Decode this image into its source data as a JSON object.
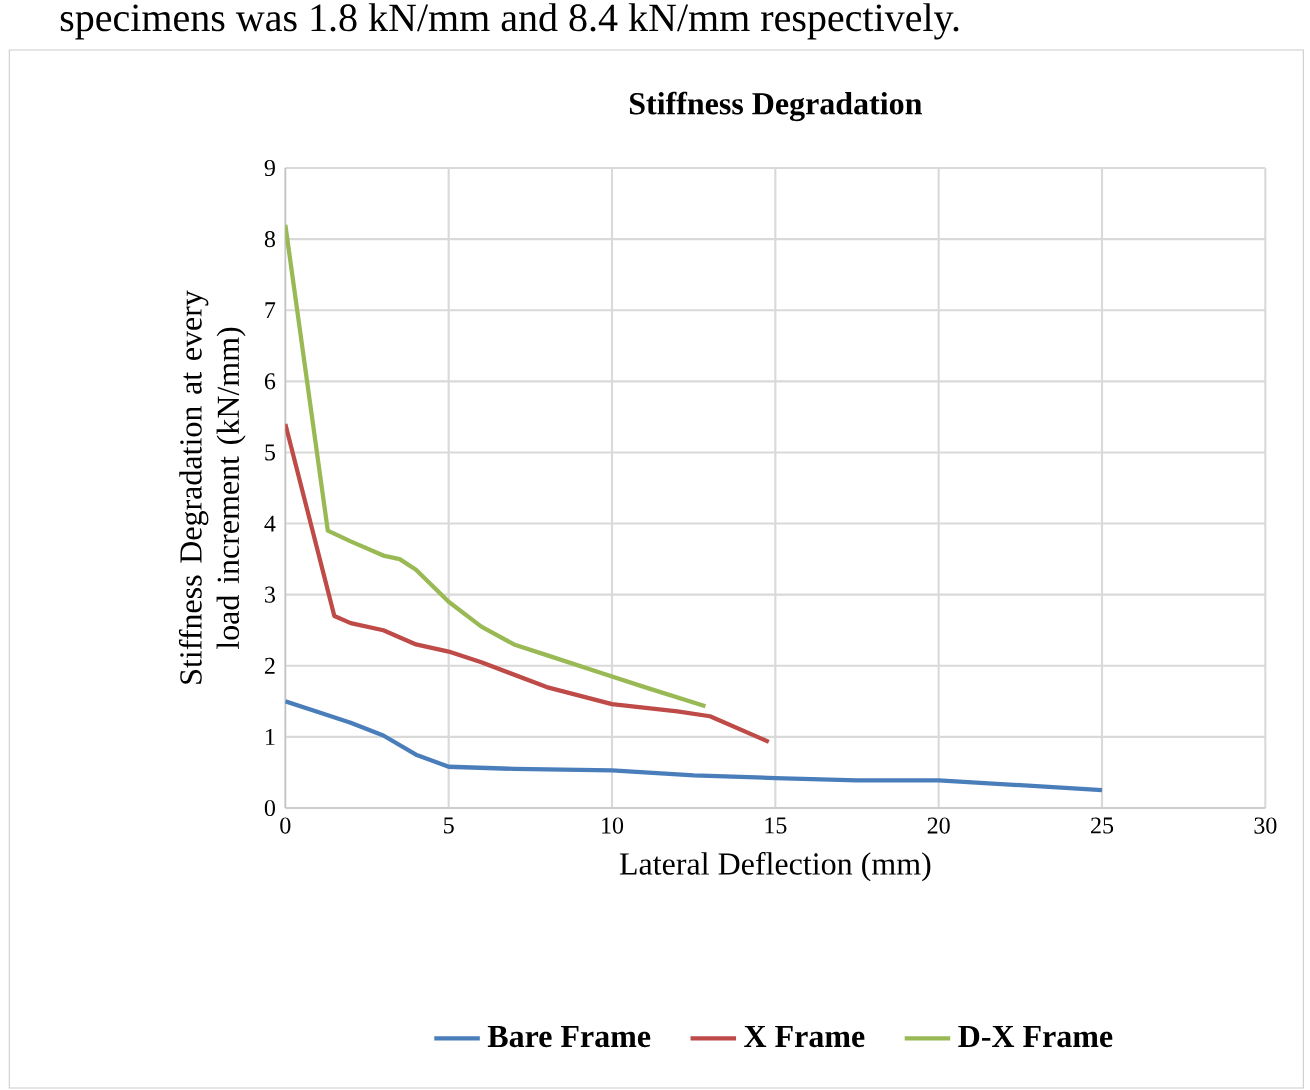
{
  "chart_data": {
    "type": "line",
    "title": "Stiffness Degradation",
    "xlabel": "Lateral Deflection (mm)",
    "ylabel": "Stiffness Degradation at every load increment (kN/mm)",
    "annotations": [
      "specimens was 1.8 kN/mm and 8.4 kN/mm respectively."
    ],
    "xlim": [
      0,
      30
    ],
    "xticks": [
      0,
      5,
      10,
      15,
      20,
      25,
      30
    ],
    "ylim": [
      0,
      9
    ],
    "yticks": [
      0,
      1,
      2,
      3,
      4,
      5,
      6,
      7,
      8,
      9
    ],
    "grid": true,
    "legend": "bottom",
    "marker": "none",
    "line_style": "solid",
    "series": [
      {
        "name": "Bare Frame",
        "color": "#4a7ebb",
        "x": [
          0,
          1,
          2,
          3,
          4,
          5,
          7,
          10,
          12.5,
          15,
          17.5,
          20,
          22.5,
          25
        ],
        "values": [
          1.5,
          1.35,
          1.2,
          1.02,
          0.75,
          0.58,
          0.55,
          0.53,
          0.46,
          0.42,
          0.39,
          0.39,
          0.32,
          0.25
        ]
      },
      {
        "name": "X Frame",
        "color": "#be4b48",
        "x": [
          0,
          1.5,
          2,
          3,
          4,
          5,
          6,
          8,
          10,
          12,
          13,
          14.8
        ],
        "values": [
          5.4,
          2.7,
          2.6,
          2.5,
          2.3,
          2.2,
          2.05,
          1.7,
          1.46,
          1.36,
          1.29,
          0.93
        ]
      },
      {
        "name": "D-X Frame",
        "color": "#98b954",
        "x": [
          0,
          1.3,
          2,
          3,
          3.5,
          4,
          5,
          6,
          7,
          8,
          9.6,
          11,
          12.86
        ],
        "values": [
          8.2,
          3.9,
          3.75,
          3.55,
          3.5,
          3.35,
          2.9,
          2.55,
          2.3,
          2.15,
          1.91,
          1.7,
          1.43
        ]
      }
    ]
  }
}
